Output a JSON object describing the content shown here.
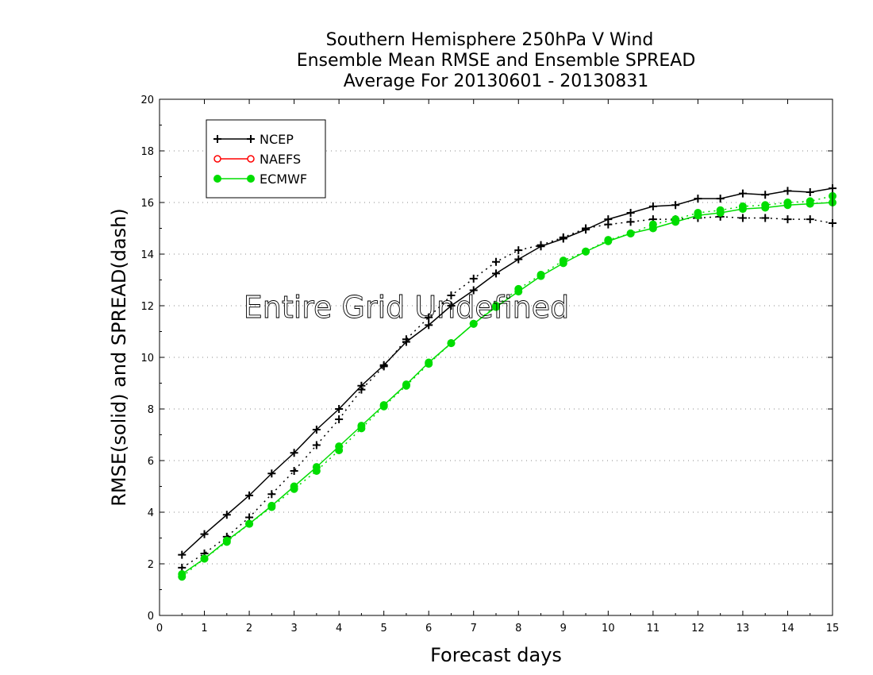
{
  "chart_data": {
    "type": "line",
    "title": [
      "Southern Hemisphere 250hPa V Wind",
      "Ensemble Mean RMSE and Ensemble SPREAD",
      "Average For 20130601 - 20130831"
    ],
    "xlabel": "Forecast days",
    "ylabel": "RMSE(solid) and SPREAD(dash)",
    "xlim": [
      0,
      15
    ],
    "ylim": [
      0,
      20
    ],
    "xticks": [
      0,
      1,
      2,
      3,
      4,
      5,
      6,
      7,
      8,
      9,
      10,
      11,
      12,
      13,
      14,
      15
    ],
    "yticks": [
      0,
      2,
      4,
      6,
      8,
      10,
      12,
      14,
      16,
      18,
      20
    ],
    "grid": "horizontal dotted",
    "legend_position": "top-left",
    "annotation": "Entire Grid Undefined",
    "x": [
      0.5,
      1,
      1.5,
      2,
      2.5,
      3,
      3.5,
      4,
      4.5,
      5,
      5.5,
      6,
      6.5,
      7,
      7.5,
      8,
      8.5,
      9,
      9.5,
      10,
      10.5,
      11,
      11.5,
      12,
      12.5,
      13,
      13.5,
      14,
      14.5,
      15
    ],
    "series": [
      {
        "name": "NCEP",
        "marker": "plus",
        "color": "#000000",
        "rmse": [
          2.35,
          3.15,
          3.9,
          4.65,
          5.5,
          6.3,
          7.2,
          8.0,
          8.9,
          9.7,
          10.6,
          11.25,
          12.0,
          12.6,
          13.25,
          13.8,
          14.3,
          14.6,
          14.95,
          15.35,
          15.6,
          15.85,
          15.9,
          16.15,
          16.15,
          16.35,
          16.3,
          16.45,
          16.4,
          16.55
        ],
        "spread": [
          1.85,
          2.4,
          3.05,
          3.8,
          4.7,
          5.6,
          6.6,
          7.6,
          8.75,
          9.65,
          10.7,
          11.55,
          12.4,
          13.05,
          13.7,
          14.15,
          14.35,
          14.65,
          15.0,
          15.15,
          15.25,
          15.35,
          15.35,
          15.4,
          15.45,
          15.4,
          15.4,
          15.35,
          15.35,
          15.2
        ]
      },
      {
        "name": "NAEFS",
        "marker": "circle-open",
        "color": "#ff0000",
        "rmse": [],
        "spread": []
      },
      {
        "name": "ECMWF",
        "marker": "circle-filled",
        "color": "#00dd00",
        "rmse": [
          1.6,
          2.2,
          2.9,
          3.55,
          4.25,
          5.0,
          5.75,
          6.55,
          7.35,
          8.15,
          8.95,
          9.8,
          10.55,
          11.3,
          11.95,
          12.55,
          13.15,
          13.65,
          14.1,
          14.5,
          14.8,
          15.0,
          15.25,
          15.5,
          15.6,
          15.75,
          15.8,
          15.9,
          15.95,
          16.0
        ],
        "spread": [
          1.5,
          2.2,
          2.85,
          3.55,
          4.2,
          4.9,
          5.6,
          6.4,
          7.25,
          8.1,
          8.9,
          9.75,
          10.55,
          11.3,
          12.0,
          12.65,
          13.2,
          13.75,
          14.1,
          14.55,
          14.8,
          15.15,
          15.35,
          15.6,
          15.7,
          15.85,
          15.9,
          16.0,
          16.05,
          16.25
        ]
      }
    ]
  }
}
